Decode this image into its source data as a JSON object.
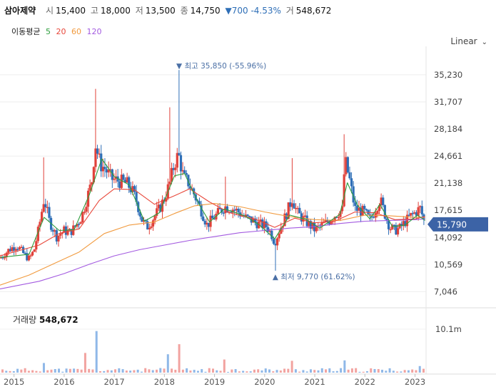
{
  "header": {
    "name": "삼아제약",
    "open_label": "시",
    "open": "15,400",
    "high_label": "고",
    "high": "18,000",
    "low_label": "저",
    "low": "13,500",
    "close_label": "종",
    "close": "14,750",
    "change": "▼700 -4.53%",
    "volume_label": "거",
    "volume": "548,672"
  },
  "ma_legend": {
    "label": "이동평균",
    "items": [
      {
        "text": "5",
        "color": "#2e9e3e"
      },
      {
        "text": "20",
        "color": "#e8473a"
      },
      {
        "text": "60",
        "color": "#f19a3e"
      },
      {
        "text": "120",
        "color": "#a35ae0"
      }
    ]
  },
  "scale_toggle": {
    "label": "Linear",
    "icon": "chevron-down-icon"
  },
  "volume_panel": {
    "label": "거래량",
    "value": "548,672"
  },
  "colors": {
    "up": "#e0413a",
    "down": "#2f6fb7",
    "up_vol": "#f2a3a0",
    "down_vol": "#8fb8e8"
  },
  "chart_data": {
    "type": "candlestick",
    "y_ticks": [
      "35,230",
      "31,707",
      "28,184",
      "24,661",
      "21,138",
      "17,615",
      "14,092",
      "10,569",
      "7,046"
    ],
    "y_tick_values": [
      35230,
      31707,
      28184,
      24661,
      21138,
      17615,
      14092,
      10569,
      7046
    ],
    "ylim": [
      5600,
      38000
    ],
    "x_ticks": [
      "2015",
      "2016",
      "2017",
      "2018",
      "2019",
      "2020",
      "2021",
      "2022",
      "2023"
    ],
    "x_range": [
      2014.72,
      2023.22
    ],
    "current_price": "15,790",
    "current_value": 15790,
    "max_annotation": {
      "text": "최고 35,850 (-55.96%)",
      "date": 2018.28,
      "value": 35850
    },
    "min_annotation": {
      "text": "최저 9,770 (61.62%)",
      "date": 2020.2,
      "value": 9770
    },
    "volume_tick": "10.1m",
    "price_path": [
      [
        2014.72,
        11400
      ],
      [
        2014.9,
        12500
      ],
      [
        2015.05,
        13100
      ],
      [
        2015.2,
        11900
      ],
      [
        2015.3,
        11300
      ],
      [
        2015.4,
        12400
      ],
      [
        2015.5,
        15500
      ],
      [
        2015.6,
        19200
      ],
      [
        2015.7,
        16300
      ],
      [
        2015.85,
        14200
      ],
      [
        2016.0,
        15000
      ],
      [
        2016.1,
        14700
      ],
      [
        2016.2,
        15300
      ],
      [
        2016.35,
        16800
      ],
      [
        2016.45,
        19100
      ],
      [
        2016.55,
        21300
      ],
      [
        2016.62,
        26300
      ],
      [
        2016.72,
        23600
      ],
      [
        2016.82,
        23000
      ],
      [
        2016.95,
        21700
      ],
      [
        2017.1,
        21400
      ],
      [
        2017.25,
        21100
      ],
      [
        2017.35,
        20300
      ],
      [
        2017.45,
        18700
      ],
      [
        2017.55,
        16400
      ],
      [
        2017.65,
        15400
      ],
      [
        2017.78,
        16600
      ],
      [
        2017.9,
        17800
      ],
      [
        2018.0,
        19200
      ],
      [
        2018.1,
        21000
      ],
      [
        2018.2,
        23700
      ],
      [
        2018.28,
        24900
      ],
      [
        2018.38,
        21900
      ],
      [
        2018.48,
        21200
      ],
      [
        2018.6,
        19600
      ],
      [
        2018.75,
        17400
      ],
      [
        2018.85,
        15700
      ],
      [
        2018.95,
        16400
      ],
      [
        2019.05,
        17100
      ],
      [
        2019.2,
        18100
      ],
      [
        2019.35,
        17900
      ],
      [
        2019.5,
        17300
      ],
      [
        2019.6,
        16700
      ],
      [
        2019.75,
        16300
      ],
      [
        2019.9,
        15800
      ],
      [
        2020.05,
        15500
      ],
      [
        2020.15,
        14300
      ],
      [
        2020.2,
        13400
      ],
      [
        2020.3,
        15100
      ],
      [
        2020.45,
        17400
      ],
      [
        2020.55,
        19200
      ],
      [
        2020.65,
        17300
      ],
      [
        2020.75,
        16600
      ],
      [
        2020.9,
        15700
      ],
      [
        2021.0,
        15100
      ],
      [
        2021.1,
        15500
      ],
      [
        2021.25,
        16100
      ],
      [
        2021.45,
        17300
      ],
      [
        2021.55,
        17600
      ],
      [
        2021.6,
        24300
      ],
      [
        2021.7,
        21400
      ],
      [
        2021.8,
        17800
      ],
      [
        2021.9,
        17600
      ],
      [
        2022.0,
        17300
      ],
      [
        2022.1,
        16300
      ],
      [
        2022.2,
        17600
      ],
      [
        2022.3,
        19100
      ],
      [
        2022.4,
        17100
      ],
      [
        2022.5,
        15400
      ],
      [
        2022.6,
        15000
      ],
      [
        2022.7,
        15300
      ],
      [
        2022.8,
        16100
      ],
      [
        2022.9,
        16800
      ],
      [
        2023.0,
        17300
      ],
      [
        2023.1,
        17900
      ],
      [
        2023.2,
        15790
      ]
    ],
    "ma5": [
      [
        2014.72,
        11500
      ],
      [
        2015.3,
        11900
      ],
      [
        2015.6,
        16700
      ],
      [
        2015.9,
        15000
      ],
      [
        2016.2,
        15100
      ],
      [
        2016.5,
        19600
      ],
      [
        2016.75,
        24300
      ],
      [
        2017.0,
        22000
      ],
      [
        2017.3,
        20900
      ],
      [
        2017.6,
        16200
      ],
      [
        2017.9,
        17300
      ],
      [
        2018.2,
        22100
      ],
      [
        2018.4,
        22400
      ],
      [
        2018.7,
        18300
      ],
      [
        2018.9,
        16100
      ],
      [
        2019.2,
        17800
      ],
      [
        2019.6,
        16900
      ],
      [
        2019.9,
        15700
      ],
      [
        2020.2,
        13900
      ],
      [
        2020.5,
        17000
      ],
      [
        2020.8,
        16500
      ],
      [
        2021.1,
        15300
      ],
      [
        2021.5,
        17100
      ],
      [
        2021.65,
        21200
      ],
      [
        2021.85,
        18300
      ],
      [
        2022.1,
        16500
      ],
      [
        2022.3,
        18400
      ],
      [
        2022.55,
        15500
      ],
      [
        2022.8,
        15700
      ],
      [
        2023.05,
        17000
      ],
      [
        2023.2,
        16300
      ]
    ],
    "ma20": [
      [
        2014.72,
        11700
      ],
      [
        2015.5,
        13100
      ],
      [
        2015.9,
        14600
      ],
      [
        2016.3,
        15200
      ],
      [
        2016.7,
        18900
      ],
      [
        2017.0,
        20400
      ],
      [
        2017.4,
        20300
      ],
      [
        2017.8,
        18400
      ],
      [
        2018.2,
        19500
      ],
      [
        2018.5,
        20400
      ],
      [
        2018.9,
        18700
      ],
      [
        2019.3,
        17300
      ],
      [
        2019.8,
        16500
      ],
      [
        2020.2,
        15400
      ],
      [
        2020.6,
        16600
      ],
      [
        2021.0,
        16000
      ],
      [
        2021.4,
        16200
      ],
      [
        2021.8,
        17400
      ],
      [
        2022.2,
        17300
      ],
      [
        2022.6,
        16400
      ],
      [
        2023.0,
        16500
      ],
      [
        2023.2,
        16800
      ]
    ],
    "ma60": [
      [
        2014.72,
        7900
      ],
      [
        2015.3,
        9200
      ],
      [
        2015.8,
        10700
      ],
      [
        2016.3,
        12200
      ],
      [
        2016.8,
        14600
      ],
      [
        2017.3,
        15700
      ],
      [
        2017.8,
        16100
      ],
      [
        2018.2,
        17200
      ],
      [
        2018.6,
        18200
      ],
      [
        2019.0,
        18500
      ],
      [
        2019.5,
        18100
      ],
      [
        2020.0,
        17400
      ],
      [
        2020.5,
        16800
      ],
      [
        2021.0,
        16400
      ],
      [
        2021.5,
        16300
      ],
      [
        2022.0,
        17000
      ],
      [
        2022.5,
        16900
      ],
      [
        2023.0,
        16700
      ],
      [
        2023.2,
        16700
      ]
    ],
    "ma120": [
      [
        2014.72,
        7400
      ],
      [
        2015.5,
        8400
      ],
      [
        2016.0,
        9400
      ],
      [
        2016.5,
        10600
      ],
      [
        2017.0,
        11700
      ],
      [
        2017.5,
        12500
      ],
      [
        2018.0,
        13100
      ],
      [
        2018.5,
        13700
      ],
      [
        2019.0,
        14200
      ],
      [
        2019.5,
        14700
      ],
      [
        2020.0,
        15000
      ],
      [
        2020.5,
        15300
      ],
      [
        2021.0,
        15500
      ],
      [
        2021.5,
        15900
      ],
      [
        2022.0,
        16200
      ],
      [
        2022.5,
        16300
      ],
      [
        2023.0,
        16400
      ],
      [
        2023.2,
        16500
      ]
    ]
  }
}
